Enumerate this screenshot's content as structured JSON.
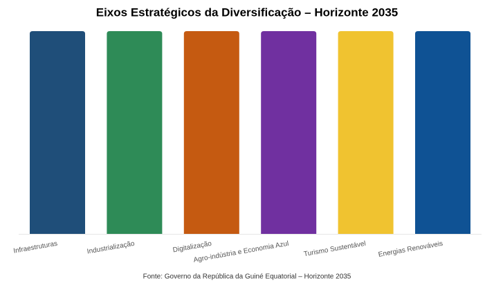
{
  "chart_data": {
    "type": "bar",
    "title": "Eixos Estratégicos da Diversificação – Horizonte 2035",
    "categories": [
      "Infraestruturas",
      "Industrialização",
      "Digitalização",
      "Agro-indústria e Economia Azul",
      "Turismo Sustentável",
      "Energias Renováveis"
    ],
    "values": [
      1,
      1,
      1,
      1,
      1,
      1
    ],
    "colors": [
      "#1f4e79",
      "#2e8b57",
      "#c55a11",
      "#7030a0",
      "#f0c330",
      "#0f5294"
    ],
    "source": "Fonte: Governo da República da Guiné Equatorial – Horizonte 2035"
  }
}
